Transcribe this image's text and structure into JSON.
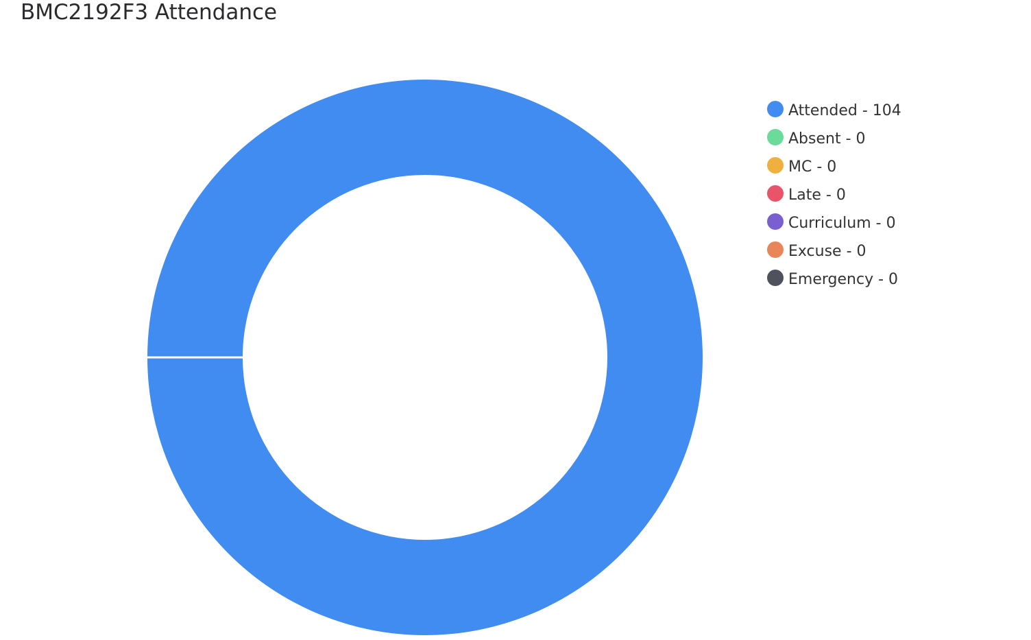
{
  "chart_data": {
    "type": "pie",
    "variant": "donut",
    "title": "BMC2192F3 Attendance",
    "categories": [
      "Attended",
      "Absent",
      "MC",
      "Late",
      "Curriculum",
      "Excuse",
      "Emergency"
    ],
    "values": [
      104,
      0,
      0,
      0,
      0,
      0,
      0
    ],
    "colors": [
      "#408cf0",
      "#6adb9a",
      "#f0b040",
      "#e9546b",
      "#7a5fd0",
      "#e8865a",
      "#4f525c"
    ],
    "legend_position": "right",
    "legend_items": [
      {
        "label": "Attended - 104",
        "color": "#408cf0"
      },
      {
        "label": "Absent - 0",
        "color": "#6adb9a"
      },
      {
        "label": "MC - 0",
        "color": "#f0b040"
      },
      {
        "label": "Late - 0",
        "color": "#e9546b"
      },
      {
        "label": "Curriculum - 0",
        "color": "#7a5fd0"
      },
      {
        "label": "Excuse - 0",
        "color": "#e8865a"
      },
      {
        "label": "Emergency - 0",
        "color": "#4f525c"
      }
    ]
  }
}
